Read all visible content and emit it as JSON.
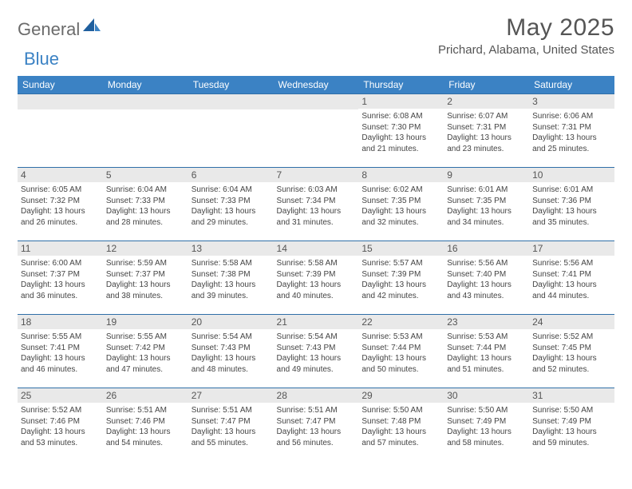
{
  "logo": {
    "part1": "General",
    "part2": "Blue"
  },
  "title": "May 2025",
  "location": "Prichard, Alabama, United States",
  "colors": {
    "header_bg": "#3b82c4",
    "header_text": "#ffffff",
    "band_bg": "#e9e9e9",
    "band_border": "#2f6fa8",
    "text": "#444444"
  },
  "day_headers": [
    "Sunday",
    "Monday",
    "Tuesday",
    "Wednesday",
    "Thursday",
    "Friday",
    "Saturday"
  ],
  "weeks": [
    [
      {
        "n": "",
        "lines": []
      },
      {
        "n": "",
        "lines": []
      },
      {
        "n": "",
        "lines": []
      },
      {
        "n": "",
        "lines": []
      },
      {
        "n": "1",
        "lines": [
          "Sunrise: 6:08 AM",
          "Sunset: 7:30 PM",
          "Daylight: 13 hours and 21 minutes."
        ]
      },
      {
        "n": "2",
        "lines": [
          "Sunrise: 6:07 AM",
          "Sunset: 7:31 PM",
          "Daylight: 13 hours and 23 minutes."
        ]
      },
      {
        "n": "3",
        "lines": [
          "Sunrise: 6:06 AM",
          "Sunset: 7:31 PM",
          "Daylight: 13 hours and 25 minutes."
        ]
      }
    ],
    [
      {
        "n": "4",
        "lines": [
          "Sunrise: 6:05 AM",
          "Sunset: 7:32 PM",
          "Daylight: 13 hours and 26 minutes."
        ]
      },
      {
        "n": "5",
        "lines": [
          "Sunrise: 6:04 AM",
          "Sunset: 7:33 PM",
          "Daylight: 13 hours and 28 minutes."
        ]
      },
      {
        "n": "6",
        "lines": [
          "Sunrise: 6:04 AM",
          "Sunset: 7:33 PM",
          "Daylight: 13 hours and 29 minutes."
        ]
      },
      {
        "n": "7",
        "lines": [
          "Sunrise: 6:03 AM",
          "Sunset: 7:34 PM",
          "Daylight: 13 hours and 31 minutes."
        ]
      },
      {
        "n": "8",
        "lines": [
          "Sunrise: 6:02 AM",
          "Sunset: 7:35 PM",
          "Daylight: 13 hours and 32 minutes."
        ]
      },
      {
        "n": "9",
        "lines": [
          "Sunrise: 6:01 AM",
          "Sunset: 7:35 PM",
          "Daylight: 13 hours and 34 minutes."
        ]
      },
      {
        "n": "10",
        "lines": [
          "Sunrise: 6:01 AM",
          "Sunset: 7:36 PM",
          "Daylight: 13 hours and 35 minutes."
        ]
      }
    ],
    [
      {
        "n": "11",
        "lines": [
          "Sunrise: 6:00 AM",
          "Sunset: 7:37 PM",
          "Daylight: 13 hours and 36 minutes."
        ]
      },
      {
        "n": "12",
        "lines": [
          "Sunrise: 5:59 AM",
          "Sunset: 7:37 PM",
          "Daylight: 13 hours and 38 minutes."
        ]
      },
      {
        "n": "13",
        "lines": [
          "Sunrise: 5:58 AM",
          "Sunset: 7:38 PM",
          "Daylight: 13 hours and 39 minutes."
        ]
      },
      {
        "n": "14",
        "lines": [
          "Sunrise: 5:58 AM",
          "Sunset: 7:39 PM",
          "Daylight: 13 hours and 40 minutes."
        ]
      },
      {
        "n": "15",
        "lines": [
          "Sunrise: 5:57 AM",
          "Sunset: 7:39 PM",
          "Daylight: 13 hours and 42 minutes."
        ]
      },
      {
        "n": "16",
        "lines": [
          "Sunrise: 5:56 AM",
          "Sunset: 7:40 PM",
          "Daylight: 13 hours and 43 minutes."
        ]
      },
      {
        "n": "17",
        "lines": [
          "Sunrise: 5:56 AM",
          "Sunset: 7:41 PM",
          "Daylight: 13 hours and 44 minutes."
        ]
      }
    ],
    [
      {
        "n": "18",
        "lines": [
          "Sunrise: 5:55 AM",
          "Sunset: 7:41 PM",
          "Daylight: 13 hours and 46 minutes."
        ]
      },
      {
        "n": "19",
        "lines": [
          "Sunrise: 5:55 AM",
          "Sunset: 7:42 PM",
          "Daylight: 13 hours and 47 minutes."
        ]
      },
      {
        "n": "20",
        "lines": [
          "Sunrise: 5:54 AM",
          "Sunset: 7:43 PM",
          "Daylight: 13 hours and 48 minutes."
        ]
      },
      {
        "n": "21",
        "lines": [
          "Sunrise: 5:54 AM",
          "Sunset: 7:43 PM",
          "Daylight: 13 hours and 49 minutes."
        ]
      },
      {
        "n": "22",
        "lines": [
          "Sunrise: 5:53 AM",
          "Sunset: 7:44 PM",
          "Daylight: 13 hours and 50 minutes."
        ]
      },
      {
        "n": "23",
        "lines": [
          "Sunrise: 5:53 AM",
          "Sunset: 7:44 PM",
          "Daylight: 13 hours and 51 minutes."
        ]
      },
      {
        "n": "24",
        "lines": [
          "Sunrise: 5:52 AM",
          "Sunset: 7:45 PM",
          "Daylight: 13 hours and 52 minutes."
        ]
      }
    ],
    [
      {
        "n": "25",
        "lines": [
          "Sunrise: 5:52 AM",
          "Sunset: 7:46 PM",
          "Daylight: 13 hours and 53 minutes."
        ]
      },
      {
        "n": "26",
        "lines": [
          "Sunrise: 5:51 AM",
          "Sunset: 7:46 PM",
          "Daylight: 13 hours and 54 minutes."
        ]
      },
      {
        "n": "27",
        "lines": [
          "Sunrise: 5:51 AM",
          "Sunset: 7:47 PM",
          "Daylight: 13 hours and 55 minutes."
        ]
      },
      {
        "n": "28",
        "lines": [
          "Sunrise: 5:51 AM",
          "Sunset: 7:47 PM",
          "Daylight: 13 hours and 56 minutes."
        ]
      },
      {
        "n": "29",
        "lines": [
          "Sunrise: 5:50 AM",
          "Sunset: 7:48 PM",
          "Daylight: 13 hours and 57 minutes."
        ]
      },
      {
        "n": "30",
        "lines": [
          "Sunrise: 5:50 AM",
          "Sunset: 7:49 PM",
          "Daylight: 13 hours and 58 minutes."
        ]
      },
      {
        "n": "31",
        "lines": [
          "Sunrise: 5:50 AM",
          "Sunset: 7:49 PM",
          "Daylight: 13 hours and 59 minutes."
        ]
      }
    ]
  ]
}
